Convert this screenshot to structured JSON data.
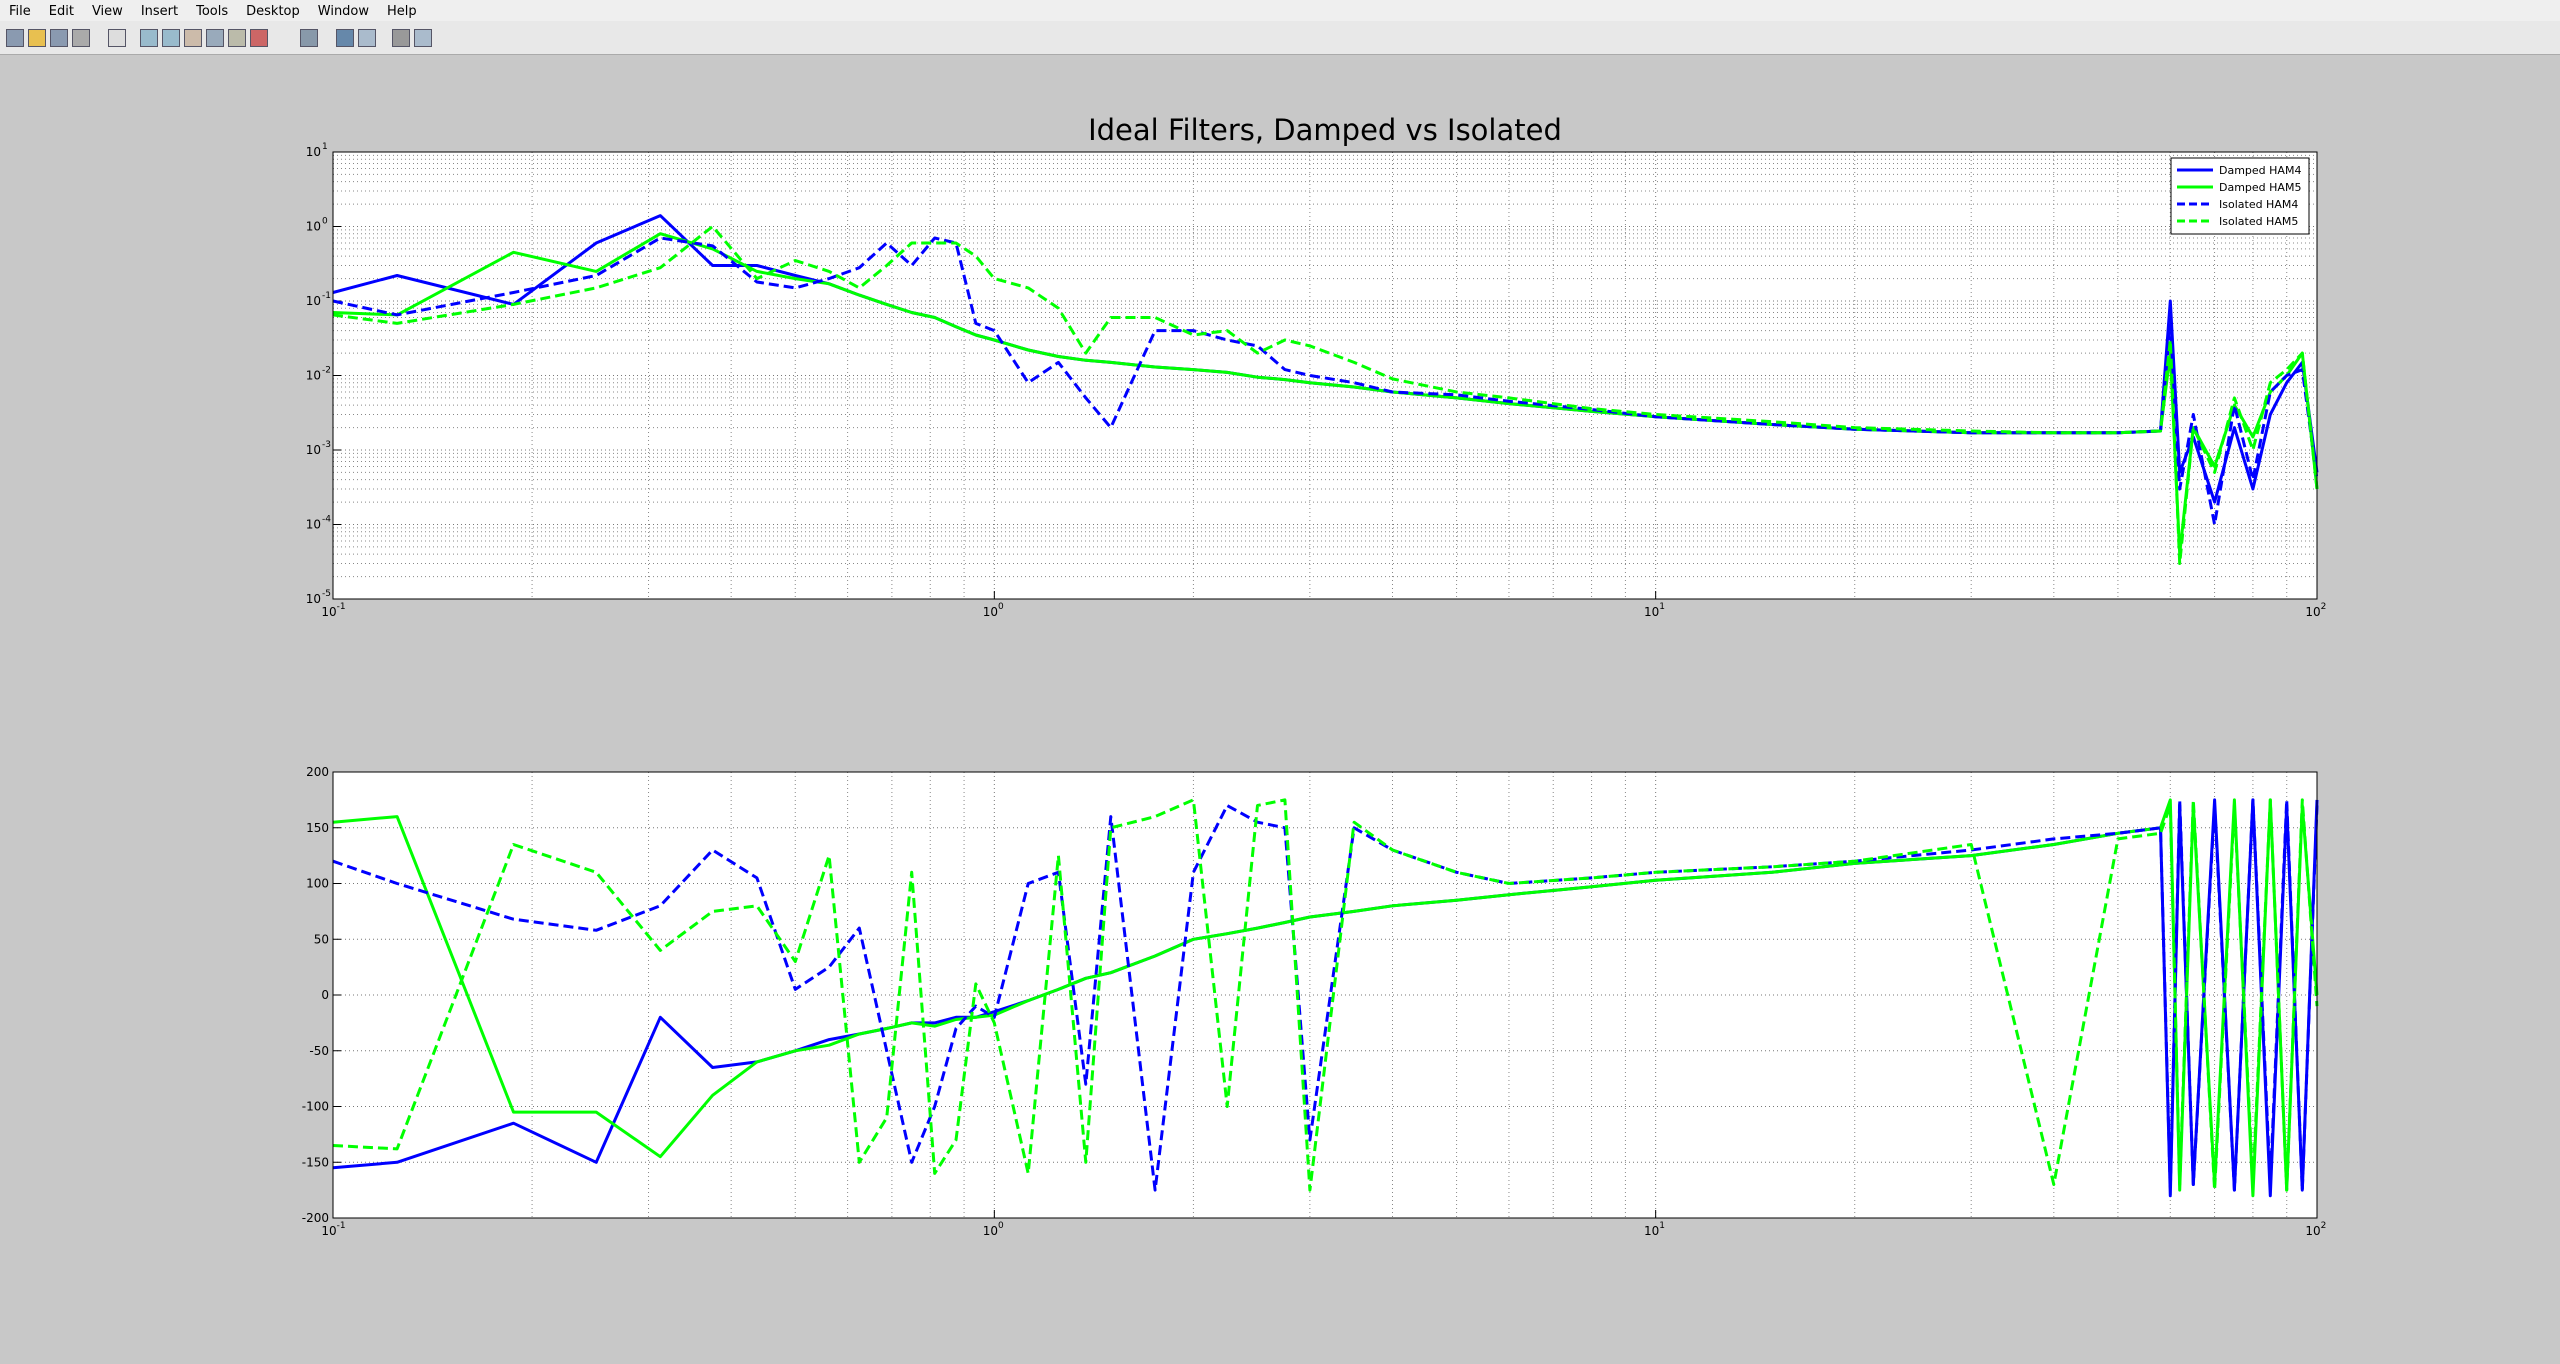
{
  "menu": [
    "File",
    "Edit",
    "View",
    "Insert",
    "Tools",
    "Desktop",
    "Window",
    "Help"
  ],
  "chart_data": [
    {
      "type": "line",
      "title": "Ideal Filters, Damped vs Isolated",
      "xscale": "log",
      "yscale": "log",
      "grid": true,
      "minor_grid": true,
      "legend": "upper right",
      "xlim": [
        0.1,
        100
      ],
      "xticks": [
        {
          "value": 0.1,
          "label": "10",
          "exponent": "-1"
        },
        {
          "value": 1,
          "label": "10",
          "exponent": "0"
        },
        {
          "value": 10,
          "label": "10",
          "exponent": "1"
        },
        {
          "value": 100,
          "label": "10",
          "exponent": "2"
        }
      ],
      "ylim": [
        1e-05,
        10
      ],
      "yticks": [
        {
          "value": 1e-05,
          "label": "10",
          "exponent": "-5"
        },
        {
          "value": 0.0001,
          "label": "10",
          "exponent": "-4"
        },
        {
          "value": 0.001,
          "label": "10",
          "exponent": "-3"
        },
        {
          "value": 0.01,
          "label": "10",
          "exponent": "-2"
        },
        {
          "value": 0.1,
          "label": "10",
          "exponent": "-1"
        },
        {
          "value": 1,
          "label": "10",
          "exponent": "0"
        },
        {
          "value": 10,
          "label": "10",
          "exponent": "1"
        }
      ],
      "x": [
        0.1,
        0.125,
        0.1875,
        0.25,
        0.3125,
        0.375,
        0.4375,
        0.5,
        0.5625,
        0.625,
        0.6875,
        0.75,
        0.8125,
        0.875,
        0.9375,
        1,
        1.125,
        1.25,
        1.375,
        1.5,
        1.75,
        2,
        2.25,
        2.5,
        2.75,
        3,
        3.5,
        4,
        5,
        6,
        8,
        10,
        15,
        20,
        30,
        40,
        50,
        58,
        60,
        62,
        65,
        70,
        75,
        80,
        85,
        90,
        95,
        100
      ],
      "series": [
        {
          "name": "Damped HAM4",
          "color": "#0000ff",
          "style": "solid",
          "values": [
            0.13,
            0.22,
            0.09,
            0.6,
            1.4,
            0.3,
            0.3,
            0.22,
            0.17,
            0.12,
            0.09,
            0.07,
            0.06,
            0.045,
            0.035,
            0.03,
            0.022,
            0.018,
            0.016,
            0.015,
            0.013,
            0.012,
            0.011,
            0.0095,
            0.0088,
            0.008,
            0.007,
            0.006,
            0.005,
            0.0042,
            0.0033,
            0.0028,
            0.0022,
            0.0019,
            0.0017,
            0.0017,
            0.0017,
            0.0018,
            0.1,
            0.0005,
            0.0015,
            0.0002,
            0.002,
            0.0003,
            0.003,
            0.008,
            0.015,
            0.0005
          ]
        },
        {
          "name": "Damped HAM5",
          "color": "#00ff00",
          "style": "solid",
          "values": [
            0.07,
            0.065,
            0.45,
            0.25,
            0.8,
            0.5,
            0.25,
            0.2,
            0.17,
            0.12,
            0.09,
            0.07,
            0.06,
            0.045,
            0.035,
            0.03,
            0.022,
            0.018,
            0.016,
            0.015,
            0.013,
            0.012,
            0.011,
            0.0095,
            0.0088,
            0.008,
            0.007,
            0.006,
            0.005,
            0.0042,
            0.0033,
            0.0028,
            0.0022,
            0.0019,
            0.0017,
            0.0017,
            0.0017,
            0.0018,
            0.02,
            4e-05,
            0.002,
            0.0006,
            0.004,
            0.0015,
            0.006,
            0.01,
            0.02,
            0.0003
          ]
        },
        {
          "name": "Isolated HAM4",
          "color": "#0000ff",
          "style": "dashed",
          "values": [
            0.1,
            0.065,
            0.13,
            0.22,
            0.7,
            0.55,
            0.18,
            0.15,
            0.2,
            0.28,
            0.6,
            0.3,
            0.7,
            0.6,
            0.05,
            0.04,
            0.008,
            0.015,
            0.005,
            0.002,
            0.04,
            0.04,
            0.03,
            0.025,
            0.012,
            0.01,
            0.008,
            0.006,
            0.0055,
            0.0045,
            0.0035,
            0.0028,
            0.0022,
            0.0019,
            0.0017,
            0.0017,
            0.0017,
            0.0018,
            0.05,
            0.0003,
            0.003,
            0.0001,
            0.004,
            0.0004,
            0.006,
            0.01,
            0.012,
            0.0004
          ]
        },
        {
          "name": "Isolated HAM5",
          "color": "#00ff00",
          "style": "dashed",
          "values": [
            0.065,
            0.05,
            0.09,
            0.15,
            0.28,
            1.0,
            0.2,
            0.35,
            0.25,
            0.15,
            0.3,
            0.6,
            0.6,
            0.6,
            0.4,
            0.2,
            0.15,
            0.08,
            0.02,
            0.06,
            0.06,
            0.035,
            0.04,
            0.02,
            0.03,
            0.025,
            0.015,
            0.009,
            0.006,
            0.005,
            0.0036,
            0.003,
            0.0024,
            0.002,
            0.0018,
            0.0017,
            0.0017,
            0.0018,
            0.03,
            3e-05,
            0.002,
            0.0005,
            0.005,
            0.001,
            0.008,
            0.012,
            0.02,
            0.0003
          ]
        }
      ]
    },
    {
      "type": "line",
      "xscale": "log",
      "yscale": "linear",
      "grid": true,
      "minor_grid": true,
      "xlim": [
        0.1,
        100
      ],
      "xticks": [
        {
          "value": 0.1,
          "label": "10",
          "exponent": "-1"
        },
        {
          "value": 1,
          "label": "10",
          "exponent": "0"
        },
        {
          "value": 10,
          "label": "10",
          "exponent": "1"
        },
        {
          "value": 100,
          "label": "10",
          "exponent": "2"
        }
      ],
      "ylim": [
        -200,
        200
      ],
      "yticks": [
        -200,
        -150,
        -100,
        -50,
        0,
        50,
        100,
        150,
        200
      ],
      "x": [
        0.1,
        0.125,
        0.1875,
        0.25,
        0.3125,
        0.375,
        0.4375,
        0.5,
        0.5625,
        0.625,
        0.6875,
        0.75,
        0.8125,
        0.875,
        0.9375,
        1,
        1.125,
        1.25,
        1.375,
        1.5,
        1.75,
        2,
        2.25,
        2.5,
        2.75,
        3,
        3.5,
        4,
        5,
        6,
        8,
        10,
        15,
        20,
        30,
        40,
        50,
        58,
        60,
        62,
        65,
        70,
        75,
        80,
        85,
        90,
        95,
        100
      ],
      "series": [
        {
          "color": "#0000ff",
          "style": "solid",
          "values": [
            -155,
            -150,
            -115,
            -150,
            -20,
            -65,
            -60,
            -50,
            -40,
            -35,
            -30,
            -25,
            -25,
            -20,
            -20,
            -15,
            -5,
            5,
            15,
            20,
            35,
            50,
            55,
            60,
            65,
            70,
            75,
            80,
            85,
            90,
            97,
            103,
            110,
            118,
            125,
            135,
            145,
            150,
            -180,
            170,
            -170,
            175,
            -175,
            175,
            -180,
            170,
            -175,
            175
          ]
        },
        {
          "color": "#00ff00",
          "style": "solid",
          "values": [
            155,
            160,
            -105,
            -105,
            -145,
            -90,
            -60,
            -50,
            -45,
            -35,
            -30,
            -25,
            -28,
            -22,
            -20,
            -18,
            -5,
            5,
            15,
            20,
            35,
            50,
            55,
            60,
            65,
            70,
            75,
            80,
            85,
            90,
            97,
            103,
            110,
            118,
            125,
            135,
            145,
            150,
            175,
            -175,
            170,
            -170,
            175,
            -180,
            175,
            -175,
            170,
            0
          ]
        },
        {
          "color": "#0000ff",
          "style": "dashed",
          "values": [
            120,
            100,
            68,
            58,
            80,
            130,
            105,
            5,
            25,
            60,
            -50,
            -150,
            -100,
            -30,
            -10,
            -20,
            100,
            110,
            -80,
            160,
            -175,
            110,
            170,
            155,
            150,
            -130,
            150,
            130,
            110,
            100,
            105,
            110,
            115,
            120,
            130,
            140,
            145,
            150,
            -175,
            175,
            -170,
            170,
            -175,
            175,
            -170,
            175,
            -175,
            170
          ]
        },
        {
          "color": "#00ff00",
          "style": "dashed",
          "values": [
            -135,
            -138,
            135,
            110,
            40,
            75,
            80,
            30,
            125,
            -150,
            -110,
            110,
            -160,
            -130,
            10,
            -25,
            -160,
            125,
            -150,
            150,
            160,
            175,
            -100,
            170,
            175,
            -175,
            155,
            130,
            110,
            100,
            105,
            110,
            115,
            120,
            135,
            -170,
            140,
            145,
            170,
            -170,
            175,
            -175,
            170,
            -170,
            175,
            -175,
            175,
            -10
          ]
        }
      ]
    }
  ]
}
